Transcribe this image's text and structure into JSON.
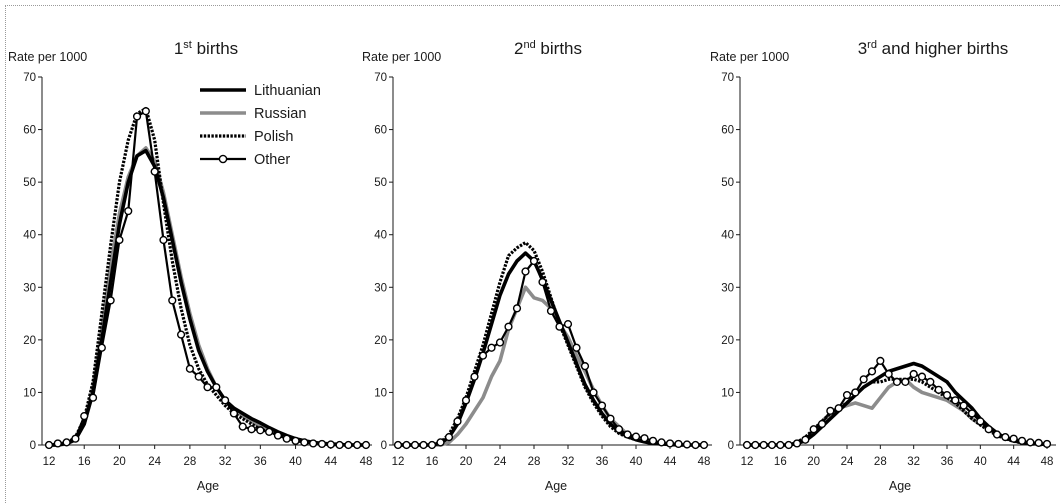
{
  "chart_data": [
    {
      "type": "line",
      "title": {
        "main": "1",
        "sup": "st",
        "rest": " births"
      },
      "ylabel": "Rate per 1000",
      "xlabel": "Age",
      "xlim": [
        12,
        48
      ],
      "ylim": [
        0,
        70
      ],
      "xticks": [
        12,
        16,
        20,
        24,
        28,
        32,
        36,
        40,
        44,
        48
      ],
      "yticks": [
        0,
        10,
        20,
        30,
        40,
        50,
        60,
        70
      ],
      "grid": false,
      "legend": "top-right",
      "x": [
        12,
        13,
        14,
        15,
        16,
        17,
        18,
        19,
        20,
        21,
        22,
        23,
        24,
        25,
        26,
        27,
        28,
        29,
        30,
        31,
        32,
        33,
        34,
        35,
        36,
        37,
        38,
        39,
        40,
        41,
        42,
        43,
        44,
        45,
        46,
        47,
        48
      ],
      "series": [
        {
          "name": "Lithuanian",
          "color": "#000000",
          "line_style": "solid",
          "values": [
            0,
            0,
            0.3,
            1,
            4,
            10,
            20,
            31,
            42,
            50,
            55,
            56,
            53,
            47,
            39,
            31,
            24,
            18,
            14,
            11,
            8.5,
            7,
            6,
            5,
            4.2,
            3.3,
            2.5,
            1.8,
            1.2,
            0.8,
            0.5,
            0.3,
            0.2,
            0.1,
            0,
            0,
            0
          ]
        },
        {
          "name": "Russian",
          "color": "#8c8c8c",
          "line_style": "solid",
          "values": [
            0,
            0,
            0.2,
            1,
            4,
            11,
            22,
            34,
            44,
            51,
            55,
            56.5,
            54,
            48,
            40,
            32,
            25,
            19,
            14.5,
            11,
            8.5,
            7,
            5.5,
            4.5,
            3.5,
            3,
            2.3,
            1.5,
            1,
            0.7,
            0.4,
            0.2,
            0.1,
            0,
            0,
            0,
            0
          ]
        },
        {
          "name": "Polish",
          "color": "#000000",
          "line_style": "dotted",
          "values": [
            0,
            0,
            0.3,
            1.5,
            5,
            12,
            25,
            38,
            50,
            58,
            63,
            64,
            58,
            46,
            35,
            26,
            19,
            14.5,
            11.5,
            9.5,
            7.5,
            6,
            5,
            4,
            3,
            2.5,
            2,
            1.3,
            0.9,
            0.5,
            0.3,
            0.2,
            0.1,
            0,
            0,
            0,
            0
          ]
        },
        {
          "name": "Other",
          "color": "#000000",
          "line_style": "solid",
          "marker": "circle",
          "values": [
            0,
            0.3,
            0.5,
            1.2,
            5.5,
            9,
            18.5,
            27.5,
            39,
            44.5,
            62.5,
            63.5,
            52,
            39,
            27.5,
            21,
            14.5,
            13,
            11,
            11,
            8.5,
            6,
            3.5,
            3,
            2.8,
            2.5,
            1.8,
            1.2,
            0.8,
            0.5,
            0.3,
            0.2,
            0.1,
            0,
            0,
            0,
            0
          ]
        }
      ]
    },
    {
      "type": "line",
      "title": {
        "main": "2",
        "sup": "nd",
        "rest": " births"
      },
      "ylabel": "Rate per 1000",
      "xlabel": "Age",
      "xlim": [
        12,
        48
      ],
      "ylim": [
        0,
        70
      ],
      "xticks": [
        12,
        16,
        20,
        24,
        28,
        32,
        36,
        40,
        44,
        48
      ],
      "yticks": [
        0,
        10,
        20,
        30,
        40,
        50,
        60,
        70
      ],
      "grid": false,
      "x": [
        12,
        13,
        14,
        15,
        16,
        17,
        18,
        19,
        20,
        21,
        22,
        23,
        24,
        25,
        26,
        27,
        28,
        29,
        30,
        31,
        32,
        33,
        34,
        35,
        36,
        37,
        38,
        39,
        40,
        41,
        42,
        43,
        44,
        45,
        46,
        47,
        48
      ],
      "series": [
        {
          "name": "Lithuanian",
          "color": "#000000",
          "line_style": "solid",
          "values": [
            0,
            0,
            0,
            0,
            0,
            0.3,
            1.5,
            4,
            8,
            12.5,
            17.5,
            23,
            28.5,
            32.5,
            35,
            36.5,
            35,
            31.5,
            27.5,
            23.5,
            19.5,
            15.5,
            11.5,
            8.5,
            6,
            4,
            2.5,
            1.6,
            1,
            0.6,
            0.3,
            0.2,
            0.1,
            0,
            0,
            0,
            0
          ]
        },
        {
          "name": "Russian",
          "color": "#8c8c8c",
          "line_style": "solid",
          "values": [
            0,
            0,
            0,
            0,
            0,
            0,
            0.5,
            2,
            4,
            6.5,
            9,
            13,
            16,
            22,
            26,
            30,
            28,
            27.5,
            26,
            23,
            20.5,
            17,
            14,
            10.5,
            7.5,
            5,
            3.5,
            2,
            1.5,
            1,
            0.5,
            0.3,
            0.2,
            0.1,
            0,
            0,
            0
          ]
        },
        {
          "name": "Polish",
          "color": "#000000",
          "line_style": "dotted",
          "values": [
            0,
            0,
            0,
            0,
            0,
            0.5,
            2,
            5,
            9,
            14,
            19,
            25,
            31,
            36,
            37.5,
            38.5,
            37,
            33,
            28,
            23,
            19,
            15,
            11,
            8,
            5.5,
            3.5,
            2.2,
            1.5,
            1,
            0.6,
            0.3,
            0.2,
            0.1,
            0,
            0,
            0,
            0
          ]
        },
        {
          "name": "Other",
          "color": "#000000",
          "line_style": "solid",
          "marker": "circle",
          "values": [
            0,
            0,
            0,
            0,
            0,
            0.5,
            1.5,
            4.5,
            8.5,
            13,
            17,
            18.5,
            19.5,
            22.5,
            26,
            33,
            35,
            31,
            25.5,
            22.5,
            23,
            18.5,
            15,
            10,
            7.5,
            5,
            3,
            2,
            1.6,
            1.3,
            0.8,
            0.5,
            0.3,
            0.2,
            0.1,
            0,
            0
          ]
        }
      ]
    },
    {
      "type": "line",
      "title": {
        "main": "3",
        "sup": "rd",
        "rest": " and higher births"
      },
      "ylabel": "Rate per 1000",
      "xlabel": "Age",
      "xlim": [
        12,
        48
      ],
      "ylim": [
        0,
        70
      ],
      "xticks": [
        12,
        16,
        20,
        24,
        28,
        32,
        36,
        40,
        44,
        48
      ],
      "yticks": [
        0,
        10,
        20,
        30,
        40,
        50,
        60,
        70
      ],
      "grid": false,
      "x": [
        12,
        13,
        14,
        15,
        16,
        17,
        18,
        19,
        20,
        21,
        22,
        23,
        24,
        25,
        26,
        27,
        28,
        29,
        30,
        31,
        32,
        33,
        34,
        35,
        36,
        37,
        38,
        39,
        40,
        41,
        42,
        43,
        44,
        45,
        46,
        47,
        48
      ],
      "series": [
        {
          "name": "Lithuanian",
          "color": "#000000",
          "line_style": "solid",
          "values": [
            0,
            0,
            0,
            0,
            0,
            0,
            0.3,
            0.8,
            2,
            3.5,
            5,
            6.5,
            8,
            9.5,
            11,
            12,
            13,
            14,
            14.5,
            15,
            15.5,
            15,
            14,
            13,
            12,
            10,
            8.5,
            7,
            5,
            3.5,
            2.3,
            1.3,
            0.8,
            0.5,
            0.3,
            0.2,
            0.1
          ]
        },
        {
          "name": "Russian",
          "color": "#8c8c8c",
          "line_style": "solid",
          "values": [
            0,
            0,
            0,
            0,
            0,
            0,
            0.3,
            1,
            2.5,
            4.5,
            6,
            7,
            7.5,
            8,
            7.5,
            7,
            9,
            11,
            12,
            12.5,
            11,
            10,
            9.5,
            9,
            8.5,
            7.5,
            6.5,
            5,
            4,
            3,
            2,
            1.5,
            1,
            0.6,
            0.3,
            0.2,
            0.1
          ]
        },
        {
          "name": "Polish",
          "color": "#000000",
          "line_style": "dotted",
          "values": [
            0,
            0,
            0,
            0,
            0,
            0,
            0.5,
            1.5,
            3,
            4.5,
            6,
            7,
            8,
            9.5,
            11,
            12,
            12,
            12.5,
            12.5,
            12.5,
            12.5,
            12,
            11,
            10,
            9,
            8,
            6.5,
            5,
            3.8,
            2.8,
            1.8,
            1.2,
            0.7,
            0.4,
            0.2,
            0.1,
            0
          ]
        },
        {
          "name": "Other",
          "color": "#000000",
          "line_style": "solid",
          "marker": "circle",
          "values": [
            0,
            0,
            0,
            0,
            0,
            0,
            0.3,
            1,
            3,
            4,
            6.5,
            7,
            9.5,
            10,
            12.5,
            14,
            16,
            13.5,
            12,
            12,
            13.5,
            13,
            12,
            10.5,
            9.5,
            8.5,
            7.5,
            6,
            4.5,
            3,
            2,
            1.5,
            1.2,
            0.8,
            0.5,
            0.4,
            0.2
          ]
        }
      ]
    }
  ]
}
